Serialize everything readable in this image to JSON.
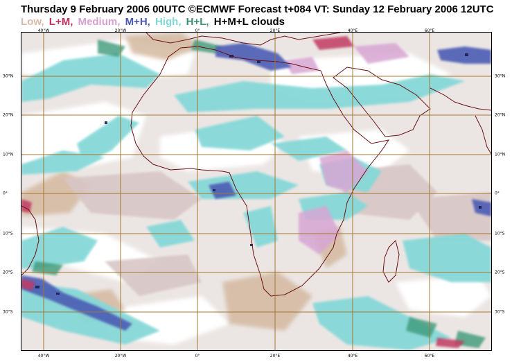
{
  "title": "Thursday 9 February 2006 00UTC ©ECMWF Forecast t+084 VT: Sunday 12 February 2006 12UTC",
  "legend": [
    {
      "text": "Low,",
      "color": "#d8b8a8"
    },
    {
      "text": "L+M,",
      "color": "#c0305a"
    },
    {
      "text": "Medium,",
      "color": "#d8a0d0"
    },
    {
      "text": "M+H,",
      "color": "#4a5ab0"
    },
    {
      "text": "High,",
      "color": "#80d8d8"
    },
    {
      "text": "H+L,",
      "color": "#3a9070"
    },
    {
      "text": "H+M+L clouds",
      "color": "#000000"
    }
  ],
  "map": {
    "longitude_ticks": [
      "40°W",
      "20°W",
      "0°",
      "20°E",
      "40°E",
      "60°E"
    ],
    "latitude_ticks": [
      "30°N",
      "20°N",
      "10°N",
      "0°",
      "10°S",
      "20°S",
      "30°S"
    ],
    "colors": {
      "grid": "#a07830",
      "coast": "#6a1010",
      "background": "#ebe6e4"
    }
  }
}
